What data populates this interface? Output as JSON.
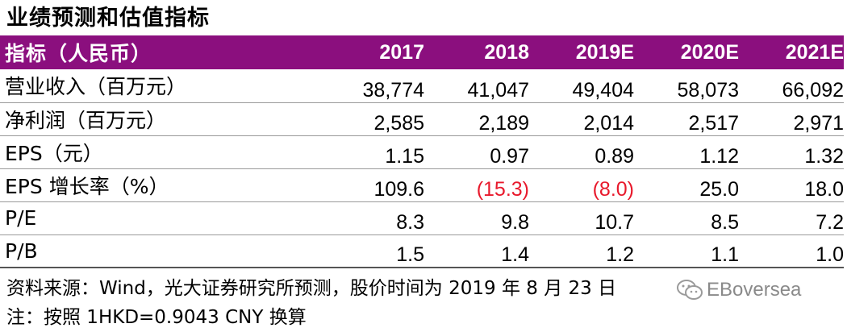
{
  "title": "业绩预测和估值指标",
  "table": {
    "header": [
      "指标（人民币）",
      "2017",
      "2018",
      "2019E",
      "2020E",
      "2021E"
    ],
    "rows": [
      {
        "label": "营业收入（百万元）",
        "values": [
          "38,774",
          "41,047",
          "49,404",
          "58,073",
          "66,092"
        ]
      },
      {
        "label": "净利润（百万元）",
        "values": [
          "2,585",
          "2,189",
          "2,014",
          "2,517",
          "2,971"
        ]
      },
      {
        "label": "EPS（元）",
        "values": [
          "1.15",
          "0.97",
          "0.89",
          "1.12",
          "1.32"
        ]
      },
      {
        "label": "EPS 增长率（%）",
        "values": [
          "109.6",
          "(15.3)",
          "(8.0)",
          "25.0",
          "18.0"
        ]
      },
      {
        "label": "P/E",
        "values": [
          "8.3",
          "9.8",
          "10.7",
          "8.5",
          "7.2"
        ]
      },
      {
        "label": "P/B",
        "values": [
          "1.5",
          "1.4",
          "1.2",
          "1.1",
          "1.0"
        ]
      }
    ]
  },
  "notes": {
    "source": "资料来源：Wind，光大证券研究所预测，股价时间为 2019 年 8 月 23 日",
    "footnote": "注：按照 1HKD=0.9043 CNY 换算"
  },
  "watermark": {
    "text": "EBoversea",
    "icon": "wechat-icon"
  },
  "colors": {
    "header_bg": "#8b0f7e",
    "negative": "#e8192c"
  }
}
